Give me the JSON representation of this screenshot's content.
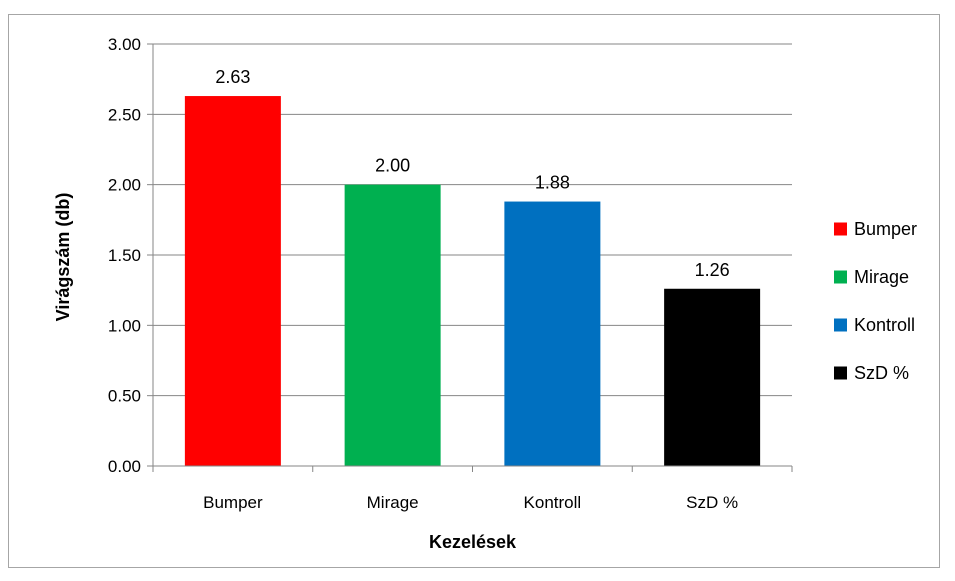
{
  "chart_data": {
    "type": "bar",
    "categories": [
      "Bumper",
      "Mirage",
      "Kontroll",
      "SzD %"
    ],
    "values": [
      2.63,
      2.0,
      1.88,
      1.26
    ],
    "data_labels": [
      "2.63",
      "2.00",
      "1.88",
      "1.26"
    ],
    "colors": [
      "#ff0000",
      "#00b050",
      "#0070c0",
      "#000000"
    ],
    "xlabel": "Kezelések",
    "ylabel": "Virágszám (db)",
    "ylim": [
      0,
      3
    ],
    "yticks": [
      "0.00",
      "0.50",
      "1.00",
      "1.50",
      "2.00",
      "2.50",
      "3.00"
    ],
    "grid": true,
    "legend": {
      "placement": "right",
      "entries": [
        "Bumper",
        "Mirage",
        "Kontroll",
        "SzD %"
      ]
    }
  }
}
